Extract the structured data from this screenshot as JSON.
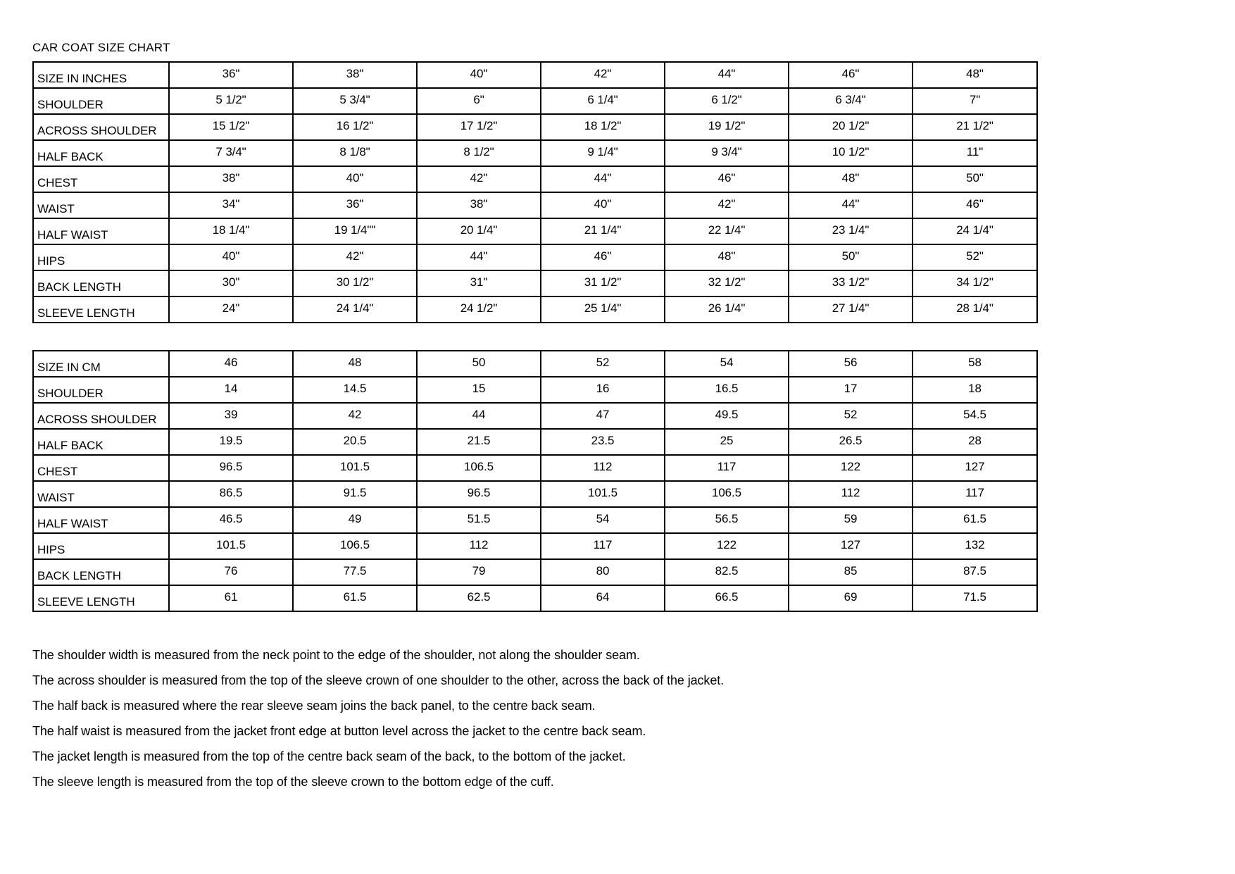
{
  "title": "CAR COAT SIZE CHART",
  "tables": [
    {
      "unit": "inches",
      "header": {
        "label": "SIZE IN INCHES",
        "values": [
          "36\"",
          "38\"",
          "40\"",
          "42\"",
          "44\"",
          "46\"",
          "48\""
        ]
      },
      "rows": [
        {
          "label": "SHOULDER",
          "values": [
            "5 1/2\"",
            "5 3/4\"",
            "6\"",
            "6 1/4\"",
            "6 1/2\"",
            "6 3/4\"",
            "7\""
          ]
        },
        {
          "label": "ACROSS SHOULDER",
          "values": [
            "15 1/2\"",
            "16 1/2\"",
            "17 1/2\"",
            "18 1/2\"",
            "19 1/2\"",
            "20 1/2\"",
            "21 1/2\""
          ]
        },
        {
          "label": "HALF BACK",
          "values": [
            "7 3/4\"",
            "8 1/8\"",
            "8 1/2\"",
            "9 1/4\"",
            "9 3/4\"",
            "10 1/2\"",
            "11\""
          ]
        },
        {
          "label": "CHEST",
          "values": [
            "38\"",
            "40\"",
            "42\"",
            "44\"",
            "46\"",
            "48\"",
            "50\""
          ]
        },
        {
          "label": "WAIST",
          "values": [
            "34\"",
            "36\"",
            "38\"",
            "40\"",
            "42\"",
            "44\"",
            "46\""
          ]
        },
        {
          "label": "HALF WAIST",
          "values": [
            "18 1/4\"",
            "19 1/4\"\"",
            "20 1/4\"",
            "21 1/4\"",
            "22 1/4\"",
            "23 1/4\"",
            "24 1/4\""
          ]
        },
        {
          "label": "HIPS",
          "values": [
            "40\"",
            "42\"",
            "44\"",
            "46\"",
            "48\"",
            "50\"",
            "52\""
          ]
        },
        {
          "label": "BACK LENGTH",
          "values": [
            "30\"",
            "30 1/2\"",
            "31\"",
            "31 1/2\"",
            "32 1/2\"",
            "33 1/2\"",
            "34 1/2\""
          ]
        },
        {
          "label": "SLEEVE LENGTH",
          "values": [
            "24\"",
            "24 1/4\"",
            "24 1/2\"",
            "25 1/4\"",
            "26 1/4\"",
            "27 1/4\"",
            "28 1/4\""
          ]
        }
      ]
    },
    {
      "unit": "cm",
      "header": {
        "label": "SIZE IN CM",
        "values": [
          "46",
          "48",
          "50",
          "52",
          "54",
          "56",
          "58"
        ]
      },
      "rows": [
        {
          "label": "SHOULDER",
          "values": [
            "14",
            "14.5",
            "15",
            "16",
            "16.5",
            "17",
            "18"
          ]
        },
        {
          "label": "ACROSS SHOULDER",
          "values": [
            "39",
            "42",
            "44",
            "47",
            "49.5",
            "52",
            "54.5"
          ]
        },
        {
          "label": "HALF BACK",
          "values": [
            "19.5",
            "20.5",
            "21.5",
            "23.5",
            "25",
            "26.5",
            "28"
          ]
        },
        {
          "label": "CHEST",
          "values": [
            "96.5",
            "101.5",
            "106.5",
            "112",
            "117",
            "122",
            "127"
          ]
        },
        {
          "label": "WAIST",
          "values": [
            "86.5",
            "91.5",
            "96.5",
            "101.5",
            "106.5",
            "112",
            "117"
          ]
        },
        {
          "label": "HALF WAIST",
          "values": [
            "46.5",
            "49",
            "51.5",
            "54",
            "56.5",
            "59",
            "61.5"
          ]
        },
        {
          "label": "HIPS",
          "values": [
            "101.5",
            "106.5",
            "112",
            "117",
            "122",
            "127",
            "132"
          ]
        },
        {
          "label": "BACK LENGTH",
          "values": [
            "76",
            "77.5",
            "79",
            "80",
            "82.5",
            "85",
            "87.5"
          ]
        },
        {
          "label": "SLEEVE LENGTH",
          "values": [
            "61",
            "61.5",
            "62.5",
            "64",
            "66.5",
            "69",
            "71.5"
          ]
        }
      ]
    }
  ],
  "notes": [
    "The shoulder width is measured from the neck point to the edge of the shoulder, not along the shoulder seam.",
    "The across shoulder is measured from the top of the sleeve crown of one shoulder to the other, across the back of the jacket.",
    "The half back is measured where the rear sleeve seam joins the back panel, to the centre back seam.",
    "The half waist is measured from the jacket front edge at button level across the jacket to the centre back seam.",
    "The jacket length is measured from the top of the centre back seam of the back, to the bottom of the jacket.",
    "The sleeve length is measured from the top of the sleeve crown to the bottom edge of the cuff."
  ]
}
